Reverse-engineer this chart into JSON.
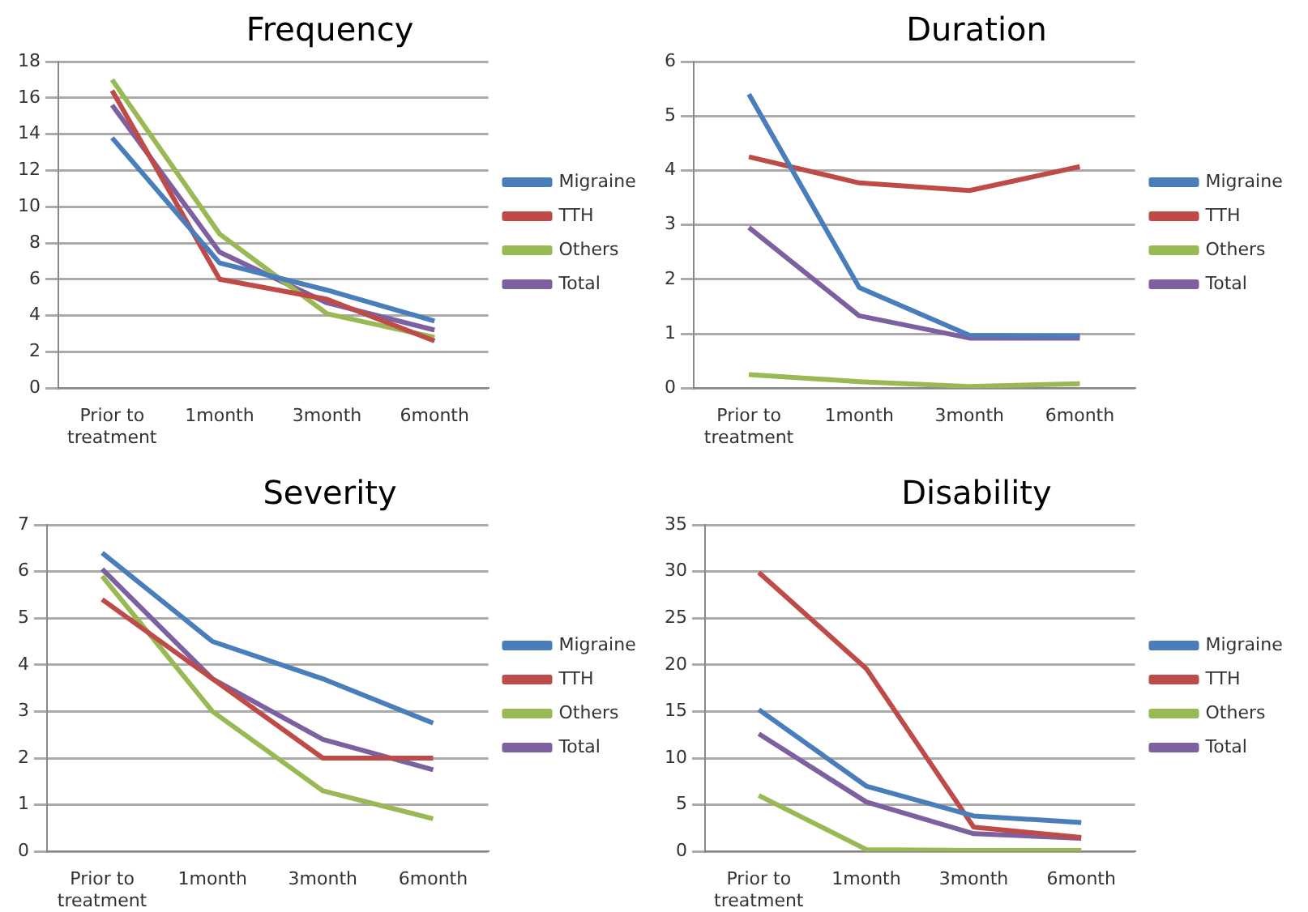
{
  "chart_data": [
    {
      "type": "line",
      "title": "Frequency",
      "categories": [
        "Prior to treatment",
        "1month",
        "3month",
        "6month"
      ],
      "ylim": [
        0,
        18
      ],
      "yticks": [
        0,
        2,
        4,
        6,
        8,
        10,
        12,
        14,
        16,
        18
      ],
      "grid": "y",
      "legend": "right",
      "marker": "none",
      "series": [
        {
          "name": "Migraine",
          "color": "#4a7ebb",
          "values": [
            13.8,
            6.9,
            5.4,
            3.7
          ]
        },
        {
          "name": "TTH",
          "color": "#be4b48",
          "values": [
            16.4,
            6.0,
            4.9,
            2.6
          ]
        },
        {
          "name": "Others",
          "color": "#98b954",
          "values": [
            17.0,
            8.5,
            4.1,
            2.8
          ]
        },
        {
          "name": "Total",
          "color": "#7d60a0",
          "values": [
            15.6,
            7.5,
            4.7,
            3.2
          ]
        }
      ]
    },
    {
      "type": "line",
      "title": "Duration",
      "categories": [
        "Prior to treatment",
        "1month",
        "3month",
        "6month"
      ],
      "ylim": [
        0,
        6
      ],
      "yticks": [
        0,
        1,
        2,
        3,
        4,
        5,
        6
      ],
      "grid": "y",
      "legend": "right",
      "marker": "none",
      "series": [
        {
          "name": "Migraine",
          "color": "#4a7ebb",
          "values": [
            5.4,
            1.85,
            0.97,
            0.96
          ]
        },
        {
          "name": "TTH",
          "color": "#be4b48",
          "values": [
            4.25,
            3.77,
            3.63,
            4.07
          ]
        },
        {
          "name": "Others",
          "color": "#98b954",
          "values": [
            0.25,
            0.12,
            0.03,
            0.08
          ]
        },
        {
          "name": "Total",
          "color": "#7d60a0",
          "values": [
            2.95,
            1.33,
            0.92,
            0.92
          ]
        }
      ]
    },
    {
      "type": "line",
      "title": "Severity",
      "categories": [
        "Prior to treatment",
        "1month",
        "3month",
        "6month"
      ],
      "ylim": [
        0,
        7
      ],
      "yticks": [
        0,
        1,
        2,
        3,
        4,
        5,
        6,
        7
      ],
      "grid": "y",
      "legend": "right",
      "marker": "none",
      "series": [
        {
          "name": "Migraine",
          "color": "#4a7ebb",
          "values": [
            6.4,
            4.5,
            3.7,
            2.75
          ]
        },
        {
          "name": "TTH",
          "color": "#be4b48",
          "values": [
            5.4,
            3.7,
            2.0,
            2.0
          ]
        },
        {
          "name": "Others",
          "color": "#98b954",
          "values": [
            5.9,
            3.0,
            1.3,
            0.7
          ]
        },
        {
          "name": "Total",
          "color": "#7d60a0",
          "values": [
            6.05,
            3.7,
            2.4,
            1.75
          ]
        }
      ]
    },
    {
      "type": "line",
      "title": "Disability",
      "categories": [
        "Prior to treatment",
        "1month",
        "3month",
        "6month"
      ],
      "ylim": [
        0,
        35
      ],
      "yticks": [
        0,
        5,
        10,
        15,
        20,
        25,
        30,
        35
      ],
      "grid": "y",
      "legend": "right",
      "marker": "none",
      "series": [
        {
          "name": "Migraine",
          "color": "#4a7ebb",
          "values": [
            15.2,
            7.0,
            3.8,
            3.1
          ]
        },
        {
          "name": "TTH",
          "color": "#be4b48",
          "values": [
            29.9,
            19.6,
            2.6,
            1.5
          ]
        },
        {
          "name": "Others",
          "color": "#98b954",
          "values": [
            6.0,
            0.2,
            0.1,
            0.1
          ]
        },
        {
          "name": "Total",
          "color": "#7d60a0",
          "values": [
            12.6,
            5.3,
            1.9,
            1.4
          ]
        }
      ]
    }
  ]
}
